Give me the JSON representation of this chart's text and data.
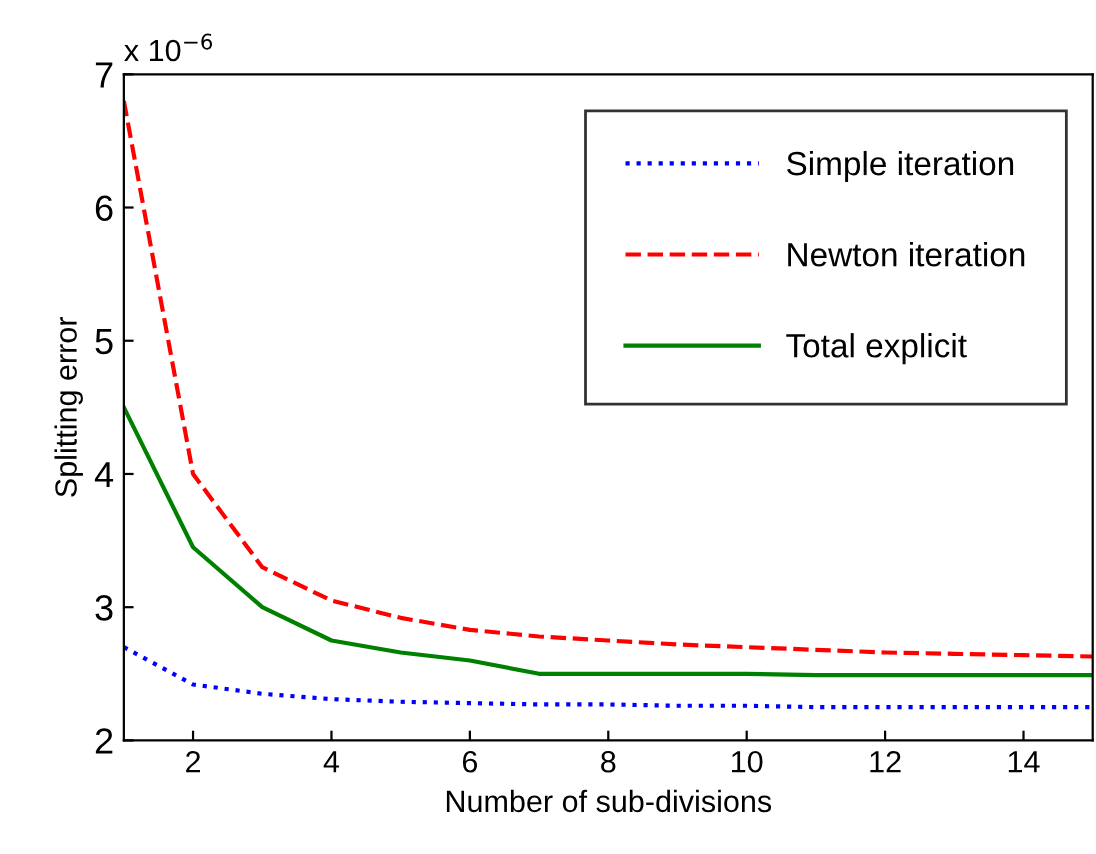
{
  "chart_data": {
    "type": "line",
    "xlabel": "Number of sub-divisions",
    "ylabel": "Splitting error",
    "annotations": [
      "x 10$^{−6}$"
    ],
    "x": [
      1,
      2,
      3,
      4,
      5,
      6,
      7,
      8,
      9,
      10,
      11,
      12,
      13,
      14,
      15
    ],
    "series": [
      {
        "name": "Simple iteration",
        "color": "#0000ff",
        "line_style": "dotted",
        "values": [
          2.7,
          2.42,
          2.35,
          2.31,
          2.29,
          2.28,
          2.27,
          2.27,
          2.26,
          2.26,
          2.25,
          2.25,
          2.25,
          2.25,
          2.25
        ]
      },
      {
        "name": "Newton iteration",
        "color": "#ff0000",
        "line_style": "dashed",
        "values": [
          6.8,
          4.0,
          3.3,
          3.05,
          2.92,
          2.83,
          2.78,
          2.75,
          2.72,
          2.7,
          2.68,
          2.66,
          2.65,
          2.64,
          2.63
        ]
      },
      {
        "name": "Total explicit",
        "color": "#008000",
        "line_style": "solid",
        "values": [
          4.5,
          3.45,
          3.0,
          2.75,
          2.66,
          2.6,
          2.5,
          2.5,
          2.5,
          2.5,
          2.49,
          2.49,
          2.49,
          2.49,
          2.49
        ]
      }
    ],
    "xlim": [
      1,
      15
    ],
    "xticks": [
      2,
      4,
      6,
      8,
      10,
      12,
      14
    ],
    "ylim": [
      2,
      7
    ],
    "yticks": [
      2,
      3,
      4,
      5,
      6,
      7
    ],
    "legend": "top right",
    "grid": false,
    "marker": "none"
  }
}
